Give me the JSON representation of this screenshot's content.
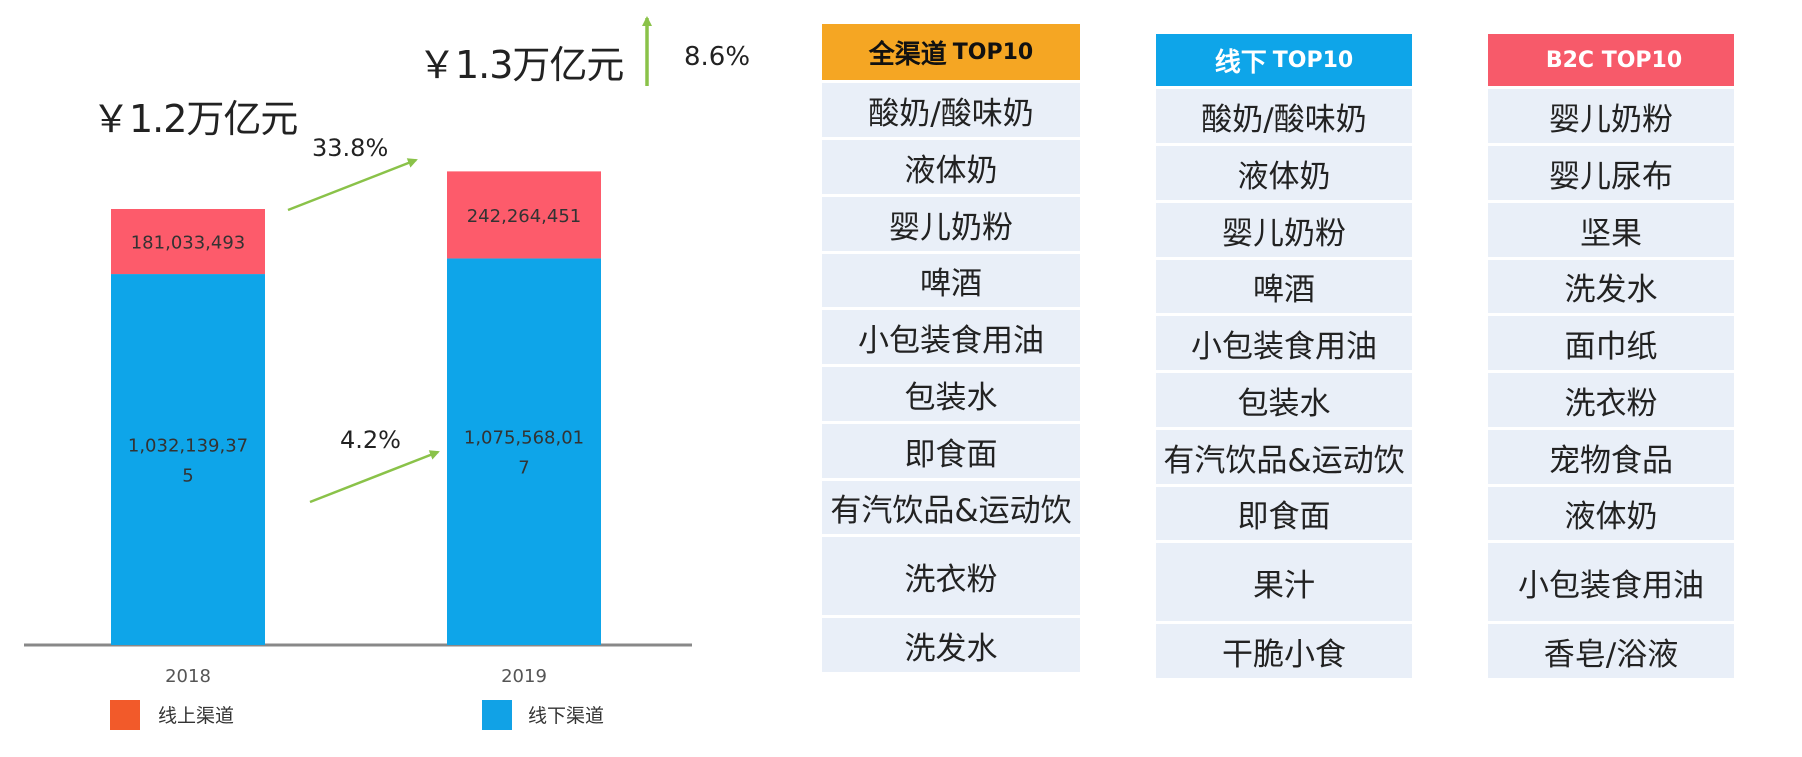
{
  "chart_data": {
    "type": "bar",
    "stacked": true,
    "categories": [
      "2018",
      "2019"
    ],
    "series": [
      {
        "name": "线上渠道",
        "values": [
          181033493,
          242264451
        ],
        "labels": [
          "181,033,493",
          "242,264,451"
        ],
        "color": "#fd5b6b",
        "legend_color": "#f25a2a"
      },
      {
        "name": "线下渠道",
        "values": [
          1032139375,
          1075568017
        ],
        "labels_lines": [
          [
            "1,032,139,37",
            "5"
          ],
          [
            "1,075,568,01",
            "7"
          ]
        ],
        "color": "#0ea5e9",
        "legend_color": "#11a2e6"
      }
    ],
    "totals": [
      "￥1.2万亿元",
      "￥1.3万亿元"
    ],
    "growth": {
      "online": "33.8%",
      "offline": "4.2%",
      "total": "8.6%"
    },
    "legend_placement": "bottom",
    "colors": {
      "arrow": "#8ac249",
      "axis": "#888888"
    }
  },
  "tables": [
    {
      "title_cn": "全渠道",
      "title_en": "TOP10",
      "header_color": "#f5a623",
      "header_text_color": "#111111",
      "items": [
        "酸奶/酸味奶",
        "液体奶",
        "婴儿奶粉",
        "啤酒",
        "小包装食用油",
        "包装水",
        "即食面",
        "有汽饮品&运动饮",
        "洗衣粉",
        "洗发水"
      ]
    },
    {
      "title_cn": "线下",
      "title_en": "TOP10",
      "header_color": "#0ea5e9",
      "header_text_color": "#ffffff",
      "items": [
        "酸奶/酸味奶",
        "液体奶",
        "婴儿奶粉",
        "啤酒",
        "小包装食用油",
        "包装水",
        "有汽饮品&运动饮",
        "即食面",
        "果汁",
        "干脆小食"
      ]
    },
    {
      "title_cn": "",
      "title_en": "B2C TOP10",
      "header_color": "#f75a6a",
      "header_text_color": "#ffffff",
      "items": [
        "婴儿奶粉",
        "婴儿尿布",
        "坚果",
        "洗发水",
        "面巾纸",
        "洗衣粉",
        "宠物食品",
        "液体奶",
        "小包装食用油",
        "香皂/浴液"
      ]
    }
  ]
}
